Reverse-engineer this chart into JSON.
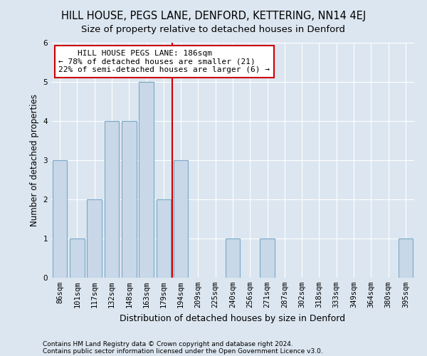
{
  "title": "HILL HOUSE, PEGS LANE, DENFORD, KETTERING, NN14 4EJ",
  "subtitle": "Size of property relative to detached houses in Denford",
  "xlabel": "Distribution of detached houses by size in Denford",
  "ylabel": "Number of detached properties",
  "footnote1": "Contains HM Land Registry data © Crown copyright and database right 2024.",
  "footnote2": "Contains public sector information licensed under the Open Government Licence v3.0.",
  "categories": [
    "86sqm",
    "101sqm",
    "117sqm",
    "132sqm",
    "148sqm",
    "163sqm",
    "179sqm",
    "194sqm",
    "209sqm",
    "225sqm",
    "240sqm",
    "256sqm",
    "271sqm",
    "287sqm",
    "302sqm",
    "318sqm",
    "333sqm",
    "349sqm",
    "364sqm",
    "380sqm",
    "395sqm"
  ],
  "values": [
    3,
    1,
    2,
    4,
    4,
    5,
    2,
    3,
    0,
    0,
    1,
    0,
    1,
    0,
    0,
    0,
    0,
    0,
    0,
    0,
    1
  ],
  "bar_color": "#c8d8e8",
  "bar_edge_color": "#7aa8c8",
  "reference_line_color": "#cc0000",
  "annotation_line1": "    HILL HOUSE PEGS LANE: 186sqm",
  "annotation_line2": "← 78% of detached houses are smaller (21)",
  "annotation_line3": "22% of semi-detached houses are larger (6) →",
  "annotation_box_color": "#cc0000",
  "ylim": [
    0,
    6
  ],
  "yticks": [
    0,
    1,
    2,
    3,
    4,
    5,
    6
  ],
  "background_color": "#dce6f0",
  "plot_background": "#dce6f0",
  "grid_color": "#ffffff",
  "title_fontsize": 10.5,
  "subtitle_fontsize": 9.5,
  "ylabel_fontsize": 8.5,
  "xlabel_fontsize": 9,
  "tick_fontsize": 7.5,
  "annotation_fontsize": 8
}
